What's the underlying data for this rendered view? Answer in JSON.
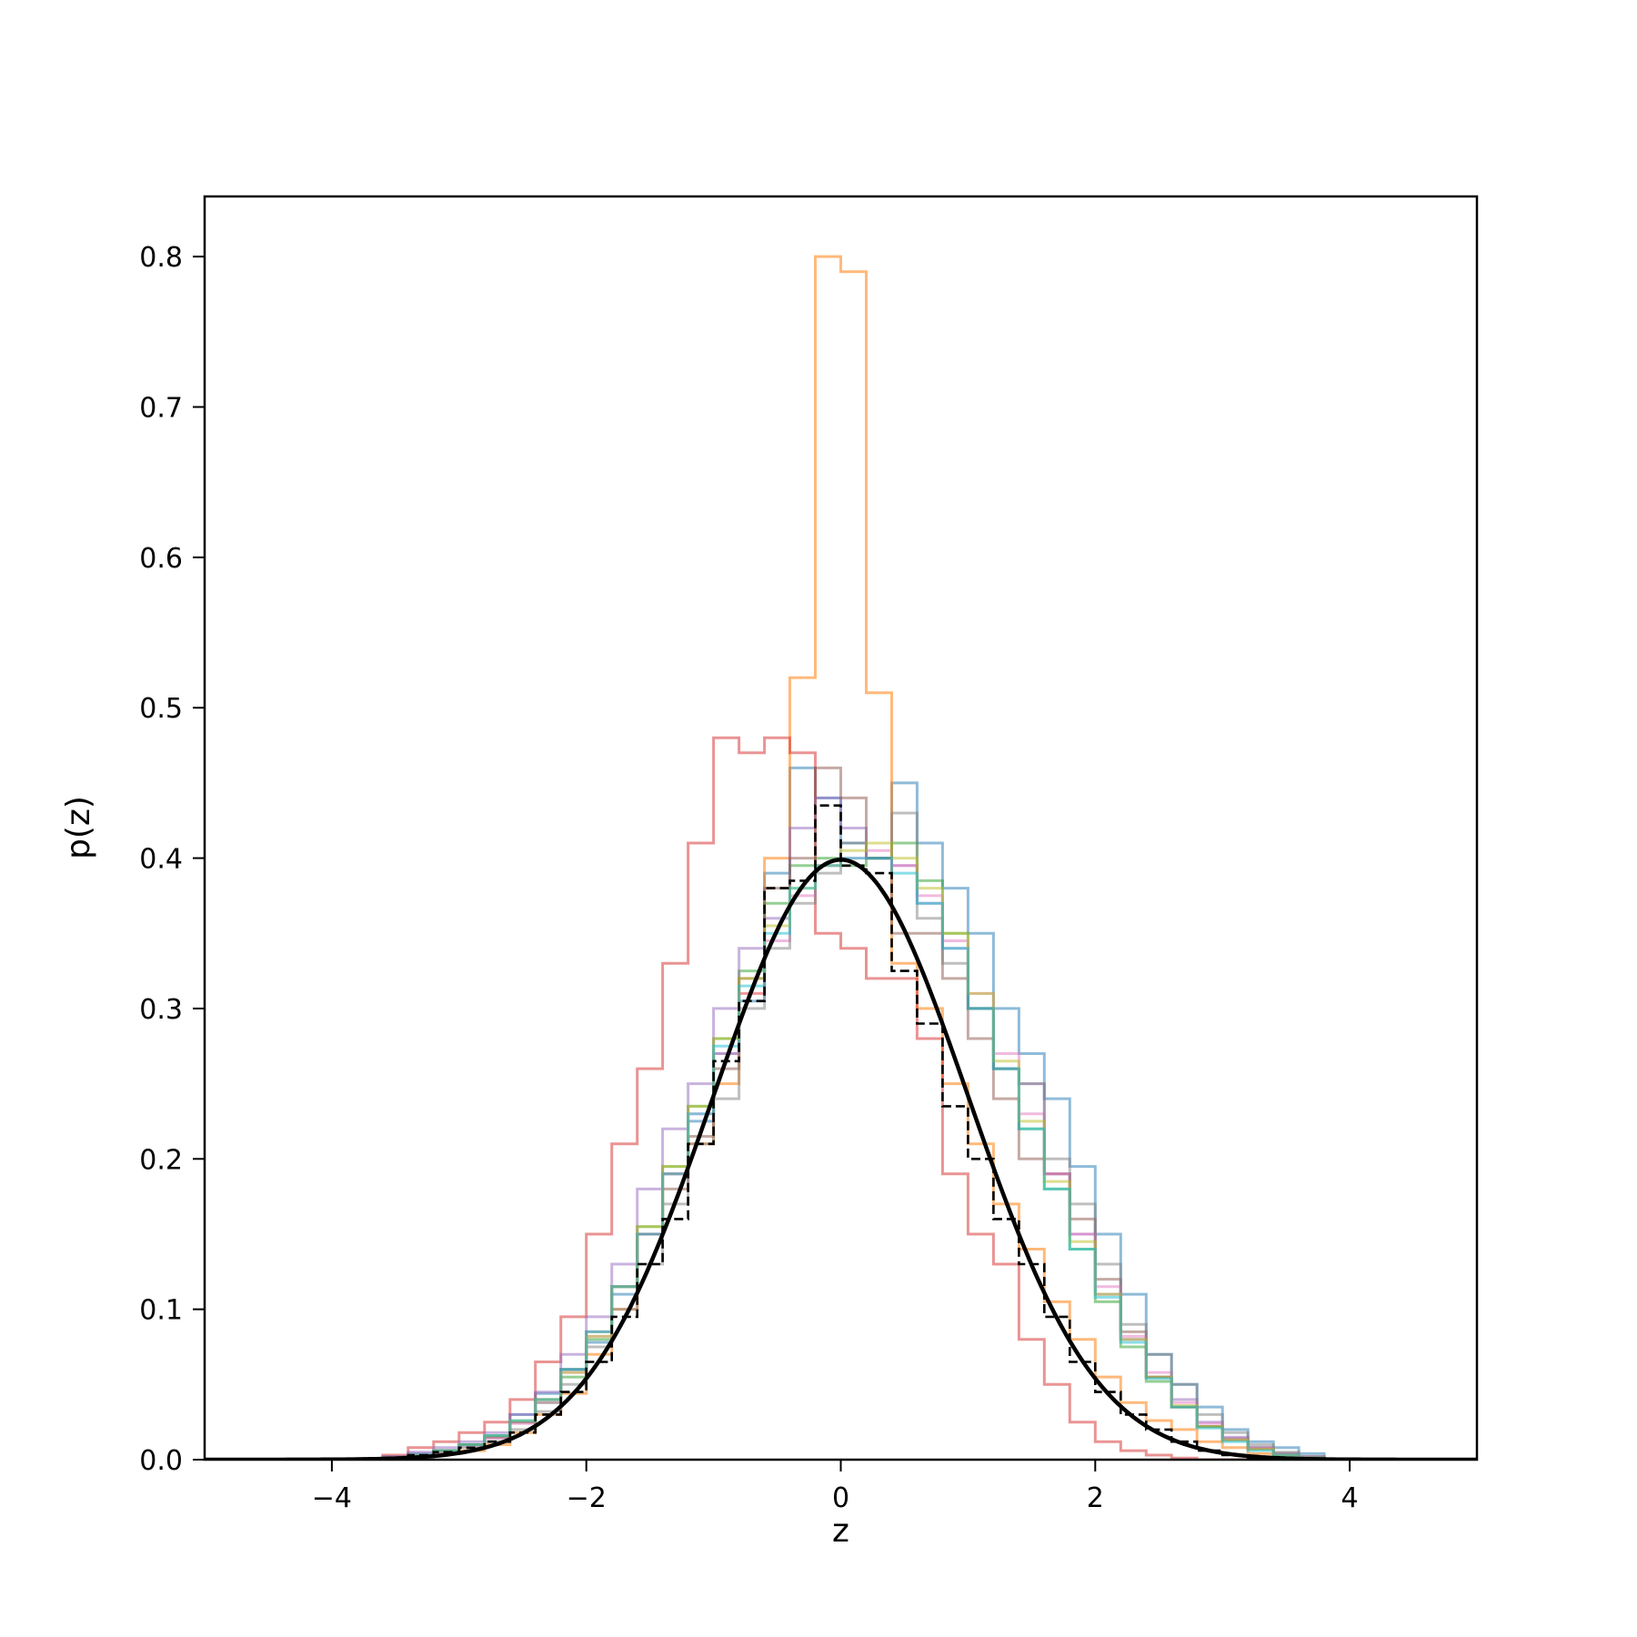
{
  "chart_data": {
    "type": "line",
    "title": "",
    "xlabel": "z",
    "ylabel": "p(z)",
    "xlim": [
      -5,
      5
    ],
    "ylim": [
      0,
      0.84
    ],
    "x_ticks": [
      -4,
      -2,
      0,
      2,
      4
    ],
    "x_tick_labels": [
      "−4",
      "−2",
      "0",
      "2",
      "4"
    ],
    "y_ticks": [
      0.0,
      0.1,
      0.2,
      0.3,
      0.4,
      0.5,
      0.6,
      0.7,
      0.8
    ],
    "y_tick_labels": [
      "0.0",
      "0.1",
      "0.2",
      "0.3",
      "0.4",
      "0.5",
      "0.6",
      "0.7",
      "0.8"
    ],
    "grid": false,
    "legend": "none",
    "bin_width": 0.2,
    "bin_start": -3.6,
    "histograms": [
      {
        "color": "#1f77b4",
        "alpha": 0.5,
        "values": [
          0.002,
          0.004,
          0.006,
          0.01,
          0.016,
          0.03,
          0.044,
          0.06,
          0.078,
          0.11,
          0.15,
          0.19,
          0.225,
          0.27,
          0.305,
          0.39,
          0.46,
          0.44,
          0.41,
          0.4,
          0.45,
          0.41,
          0.38,
          0.35,
          0.3,
          0.27,
          0.24,
          0.195,
          0.15,
          0.11,
          0.07,
          0.05,
          0.035,
          0.02,
          0.012,
          0.008,
          0.004
        ]
      },
      {
        "color": "#ff7f0e",
        "alpha": 0.55,
        "values": [
          0.0,
          0.002,
          0.004,
          0.006,
          0.01,
          0.018,
          0.03,
          0.044,
          0.07,
          0.1,
          0.15,
          0.19,
          0.21,
          0.25,
          0.31,
          0.4,
          0.52,
          0.8,
          0.79,
          0.51,
          0.33,
          0.3,
          0.25,
          0.21,
          0.17,
          0.14,
          0.105,
          0.08,
          0.055,
          0.038,
          0.026,
          0.02,
          0.012,
          0.008,
          0.004,
          0.002,
          0.001
        ]
      },
      {
        "color": "#2ca02c",
        "alpha": 0.5,
        "values": [
          0.001,
          0.003,
          0.006,
          0.01,
          0.015,
          0.025,
          0.038,
          0.055,
          0.08,
          0.115,
          0.155,
          0.195,
          0.235,
          0.28,
          0.325,
          0.37,
          0.395,
          0.4,
          0.395,
          0.4,
          0.41,
          0.385,
          0.35,
          0.3,
          0.26,
          0.22,
          0.18,
          0.14,
          0.105,
          0.075,
          0.052,
          0.035,
          0.022,
          0.014,
          0.008,
          0.004,
          0.002
        ]
      },
      {
        "color": "#d62728",
        "alpha": 0.5,
        "values": [
          0.003,
          0.008,
          0.012,
          0.018,
          0.025,
          0.04,
          0.065,
          0.095,
          0.15,
          0.21,
          0.26,
          0.33,
          0.41,
          0.48,
          0.47,
          0.48,
          0.47,
          0.35,
          0.34,
          0.32,
          0.32,
          0.28,
          0.19,
          0.15,
          0.13,
          0.08,
          0.05,
          0.025,
          0.012,
          0.006,
          0.003,
          0.001,
          0.0,
          0.0,
          0.0,
          0.0,
          0.0
        ]
      },
      {
        "color": "#9467bd",
        "alpha": 0.5,
        "values": [
          0.002,
          0.005,
          0.008,
          0.012,
          0.018,
          0.03,
          0.045,
          0.07,
          0.095,
          0.13,
          0.18,
          0.22,
          0.25,
          0.3,
          0.34,
          0.36,
          0.42,
          0.44,
          0.42,
          0.4,
          0.395,
          0.37,
          0.34,
          0.3,
          0.26,
          0.25,
          0.19,
          0.15,
          0.11,
          0.08,
          0.055,
          0.04,
          0.025,
          0.015,
          0.008,
          0.004,
          0.002
        ]
      },
      {
        "color": "#8c564b",
        "alpha": 0.5,
        "values": [
          0.001,
          0.003,
          0.006,
          0.01,
          0.015,
          0.025,
          0.04,
          0.06,
          0.085,
          0.115,
          0.15,
          0.18,
          0.215,
          0.26,
          0.32,
          0.38,
          0.4,
          0.46,
          0.44,
          0.4,
          0.35,
          0.35,
          0.32,
          0.28,
          0.24,
          0.2,
          0.19,
          0.16,
          0.12,
          0.085,
          0.055,
          0.035,
          0.022,
          0.013,
          0.007,
          0.003,
          0.001
        ]
      },
      {
        "color": "#e377c2",
        "alpha": 0.5,
        "values": [
          0.001,
          0.003,
          0.005,
          0.009,
          0.014,
          0.024,
          0.038,
          0.058,
          0.082,
          0.115,
          0.15,
          0.19,
          0.23,
          0.27,
          0.31,
          0.345,
          0.375,
          0.395,
          0.4,
          0.405,
          0.395,
          0.375,
          0.345,
          0.31,
          0.27,
          0.23,
          0.19,
          0.15,
          0.115,
          0.082,
          0.058,
          0.038,
          0.024,
          0.014,
          0.008,
          0.004,
          0.002
        ]
      },
      {
        "color": "#7f7f7f",
        "alpha": 0.5,
        "values": [
          0.001,
          0.002,
          0.004,
          0.008,
          0.012,
          0.02,
          0.032,
          0.05,
          0.075,
          0.1,
          0.13,
          0.17,
          0.21,
          0.24,
          0.3,
          0.34,
          0.37,
          0.39,
          0.41,
          0.4,
          0.43,
          0.36,
          0.33,
          0.3,
          0.26,
          0.25,
          0.2,
          0.17,
          0.13,
          0.09,
          0.07,
          0.05,
          0.03,
          0.018,
          0.01,
          0.005,
          0.002
        ]
      },
      {
        "color": "#bcbd22",
        "alpha": 0.5,
        "values": [
          0.001,
          0.003,
          0.006,
          0.01,
          0.016,
          0.026,
          0.04,
          0.058,
          0.082,
          0.115,
          0.155,
          0.195,
          0.235,
          0.28,
          0.32,
          0.355,
          0.38,
          0.395,
          0.405,
          0.41,
          0.4,
          0.38,
          0.35,
          0.31,
          0.265,
          0.225,
          0.185,
          0.145,
          0.11,
          0.08,
          0.055,
          0.036,
          0.022,
          0.013,
          0.007,
          0.003,
          0.001
        ]
      },
      {
        "color": "#17becf",
        "alpha": 0.5,
        "values": [
          0.001,
          0.003,
          0.006,
          0.01,
          0.016,
          0.026,
          0.04,
          0.06,
          0.085,
          0.115,
          0.15,
          0.19,
          0.23,
          0.275,
          0.315,
          0.35,
          0.38,
          0.395,
          0.4,
          0.4,
          0.39,
          0.37,
          0.34,
          0.3,
          0.26,
          0.22,
          0.18,
          0.14,
          0.108,
          0.078,
          0.054,
          0.035,
          0.021,
          0.012,
          0.006,
          0.003,
          0.001
        ]
      }
    ],
    "dashed_histogram": {
      "color": "#000000",
      "values": [
        0.001,
        0.003,
        0.005,
        0.008,
        0.012,
        0.018,
        0.03,
        0.045,
        0.065,
        0.095,
        0.13,
        0.16,
        0.21,
        0.265,
        0.305,
        0.38,
        0.385,
        0.435,
        0.395,
        0.39,
        0.325,
        0.29,
        0.235,
        0.2,
        0.16,
        0.13,
        0.095,
        0.065,
        0.045,
        0.03,
        0.02,
        0.012,
        0.006,
        0.003,
        0.001,
        0.0,
        0.0
      ]
    },
    "reference_curve": {
      "type": "normal_pdf",
      "mean": 0,
      "std": 1,
      "x_range": [
        -5,
        5
      ],
      "color": "#000000"
    }
  }
}
